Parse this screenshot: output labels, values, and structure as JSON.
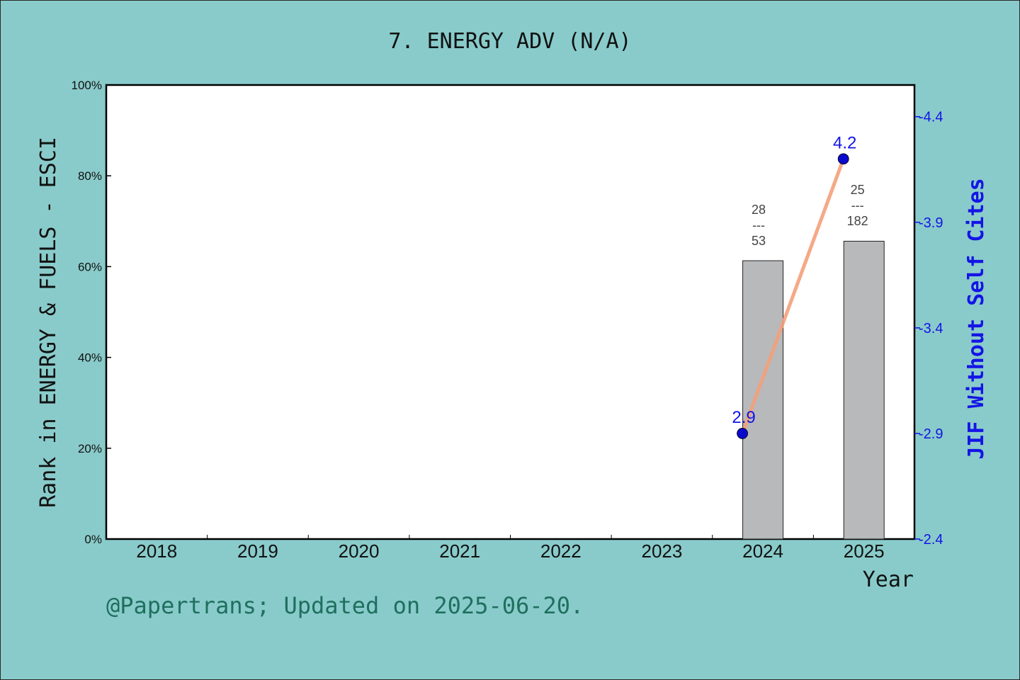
{
  "chart_data": {
    "type": "bar",
    "title": "7. ENERGY ADV (N/A)",
    "xlabel": "Year",
    "ylabel": "Rank in ENERGY & FUELS - ESCI",
    "ylabel_right": "JIF Without Self Cites",
    "categories": [
      "2018",
      "2019",
      "2020",
      "2021",
      "2022",
      "2023",
      "2024",
      "2025"
    ],
    "ylim": [
      0,
      100
    ],
    "yticks": [
      "0%",
      "20%",
      "40%",
      "60%",
      "80%",
      "100%"
    ],
    "ylim_right": [
      2.4,
      4.55
    ],
    "yticks_right": [
      "2.4",
      "2.9",
      "3.4",
      "3.9",
      "4.4"
    ],
    "bars": [
      {
        "category": "2024",
        "value": 61.3,
        "rank": "28",
        "total": "53",
        "separator": "---"
      },
      {
        "category": "2025",
        "value": 65.6,
        "rank": "25",
        "total": "182",
        "separator": "---"
      }
    ],
    "line": {
      "points": [
        {
          "category": "2024",
          "value": 2.9,
          "label": "2.9"
        },
        {
          "category": "2025",
          "value": 4.2,
          "label": "4.2"
        }
      ],
      "line_color": "#f4a07a",
      "marker_color": "#0a0acc"
    },
    "bar_color": "#b8b9ba",
    "footer": "@Papertrans; Updated on 2025-06-20."
  }
}
